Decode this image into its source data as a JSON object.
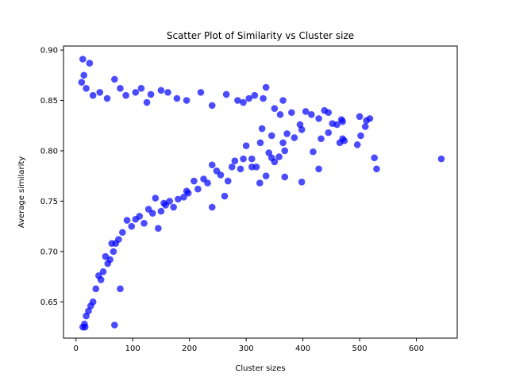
{
  "chart_data": {
    "type": "scatter",
    "title": "Scatter Plot of Similarity vs Cluster size",
    "xlabel": "Cluster sizes",
    "ylabel": "Average similarity",
    "xlim": [
      -22,
      672
    ],
    "ylim": [
      0.614,
      0.904
    ],
    "xticks": [
      0,
      100,
      200,
      300,
      400,
      500,
      600
    ],
    "yticks": [
      0.65,
      0.7,
      0.75,
      0.8,
      0.85,
      0.9
    ],
    "ytick_labels": [
      "0.65",
      "0.70",
      "0.75",
      "0.80",
      "0.85",
      "0.90"
    ],
    "grid": false,
    "legend": "none",
    "color": "#0000ff",
    "alpha": 0.7,
    "series": [
      {
        "points": [
          [
            10,
            0.868
          ],
          [
            12,
            0.891
          ],
          [
            14,
            0.875
          ],
          [
            24,
            0.887
          ],
          [
            18,
            0.862
          ],
          [
            30,
            0.855
          ],
          [
            42,
            0.858
          ],
          [
            55,
            0.852
          ],
          [
            68,
            0.871
          ],
          [
            78,
            0.862
          ],
          [
            88,
            0.855
          ],
          [
            105,
            0.858
          ],
          [
            115,
            0.862
          ],
          [
            125,
            0.848
          ],
          [
            132,
            0.856
          ],
          [
            150,
            0.86
          ],
          [
            162,
            0.858
          ],
          [
            178,
            0.852
          ],
          [
            195,
            0.85
          ],
          [
            220,
            0.858
          ],
          [
            240,
            0.845
          ],
          [
            265,
            0.856
          ],
          [
            285,
            0.85
          ],
          [
            295,
            0.848
          ],
          [
            305,
            0.852
          ],
          [
            315,
            0.855
          ],
          [
            330,
            0.852
          ],
          [
            335,
            0.863
          ],
          [
            350,
            0.842
          ],
          [
            360,
            0.836
          ],
          [
            365,
            0.85
          ],
          [
            380,
            0.838
          ],
          [
            395,
            0.826
          ],
          [
            405,
            0.839
          ],
          [
            415,
            0.836
          ],
          [
            428,
            0.832
          ],
          [
            438,
            0.84
          ],
          [
            445,
            0.838
          ],
          [
            452,
            0.827
          ],
          [
            460,
            0.826
          ],
          [
            468,
            0.831
          ],
          [
            470,
            0.829
          ],
          [
            500,
            0.834
          ],
          [
            510,
            0.824
          ],
          [
            512,
            0.83
          ],
          [
            518,
            0.832
          ],
          [
            502,
            0.815
          ],
          [
            470,
            0.812
          ],
          [
            465,
            0.808
          ],
          [
            445,
            0.818
          ],
          [
            432,
            0.812
          ],
          [
            418,
            0.799
          ],
          [
            398,
            0.821
          ],
          [
            385,
            0.813
          ],
          [
            372,
            0.817
          ],
          [
            365,
            0.808
          ],
          [
            358,
            0.794
          ],
          [
            350,
            0.789
          ],
          [
            340,
            0.798
          ],
          [
            345,
            0.815
          ],
          [
            328,
            0.822
          ],
          [
            325,
            0.808
          ],
          [
            318,
            0.784
          ],
          [
            310,
            0.792
          ],
          [
            300,
            0.805
          ],
          [
            295,
            0.792
          ],
          [
            290,
            0.782
          ],
          [
            280,
            0.79
          ],
          [
            275,
            0.784
          ],
          [
            268,
            0.77
          ],
          [
            262,
            0.755
          ],
          [
            255,
            0.776
          ],
          [
            248,
            0.78
          ],
          [
            240,
            0.786
          ],
          [
            232,
            0.768
          ],
          [
            225,
            0.772
          ],
          [
            215,
            0.762
          ],
          [
            208,
            0.77
          ],
          [
            198,
            0.758
          ],
          [
            190,
            0.754
          ],
          [
            180,
            0.752
          ],
          [
            172,
            0.744
          ],
          [
            165,
            0.75
          ],
          [
            158,
            0.746
          ],
          [
            150,
            0.74
          ],
          [
            145,
            0.723
          ],
          [
            135,
            0.738
          ],
          [
            128,
            0.742
          ],
          [
            120,
            0.728
          ],
          [
            112,
            0.735
          ],
          [
            105,
            0.732
          ],
          [
            98,
            0.725
          ],
          [
            90,
            0.731
          ],
          [
            82,
            0.719
          ],
          [
            75,
            0.712
          ],
          [
            70,
            0.708
          ],
          [
            66,
            0.7
          ],
          [
            60,
            0.692
          ],
          [
            56,
            0.688
          ],
          [
            52,
            0.695
          ],
          [
            48,
            0.68
          ],
          [
            44,
            0.672
          ],
          [
            40,
            0.676
          ],
          [
            35,
            0.663
          ],
          [
            30,
            0.65
          ],
          [
            26,
            0.646
          ],
          [
            22,
            0.641
          ],
          [
            18,
            0.636
          ],
          [
            15,
            0.628
          ],
          [
            12,
            0.625
          ],
          [
            16,
            0.625
          ],
          [
            68,
            0.627
          ],
          [
            78,
            0.663
          ],
          [
            63,
            0.708
          ],
          [
            324,
            0.768
          ],
          [
            310,
            0.784
          ],
          [
            335,
            0.775
          ],
          [
            368,
            0.774
          ],
          [
            345,
            0.793
          ],
          [
            368,
            0.8
          ],
          [
            398,
            0.769
          ],
          [
            428,
            0.782
          ],
          [
            526,
            0.793
          ],
          [
            530,
            0.782
          ],
          [
            644,
            0.792
          ],
          [
            473,
            0.81
          ],
          [
            496,
            0.806
          ],
          [
            240,
            0.744
          ],
          [
            195,
            0.76
          ],
          [
            155,
            0.748
          ],
          [
            140,
            0.753
          ]
        ]
      }
    ]
  }
}
